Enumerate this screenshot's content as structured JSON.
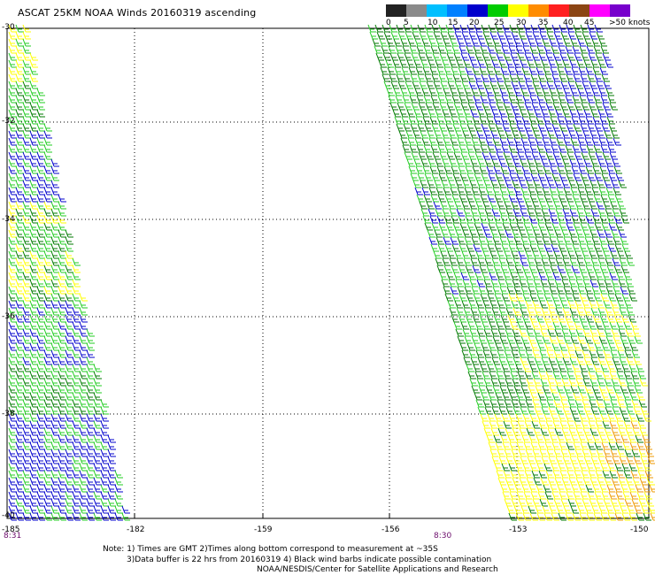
{
  "title": "ASCAT 25KM NOAA Winds 20160319 ascending",
  "colorbar": {
    "labels": [
      "0",
      "5",
      "10",
      "15",
      "20",
      "25",
      "30",
      "35",
      "40",
      "45",
      ">50 knots"
    ],
    "colors": [
      "#222222",
      "#8a8a8a",
      "#00bfff",
      "#0080ff",
      "#0000cc",
      "#00cc00",
      "#ffff00",
      "#ff8c00",
      "#ff2020",
      "#8b4513",
      "#ff00ff",
      "#7700cc"
    ]
  },
  "map": {
    "lat_labels": [
      "-30",
      "-32",
      "-34",
      "-36",
      "-38",
      "-40"
    ],
    "lon_labels": [
      "-185",
      "-182",
      "-159",
      "-156",
      "-153",
      "-150"
    ],
    "time_labels": [
      "8:31",
      "8:30"
    ]
  },
  "notes": {
    "line1": "Note: 1) Times are GMT 2)Times along bottom correspond to measurement at ~35S",
    "line2": "3)Data buffer is 22 hrs from 20160319 4) Black wind barbs indicate possible contamination",
    "line3": "NOAA/NESDIS/Center for Satellite Applications and Research"
  },
  "barb_colors": {
    "dark_green": "#007a00",
    "green": "#22cc22",
    "blue": "#0000cc",
    "yellow": "#ffff00",
    "orange": "#ee9900"
  }
}
